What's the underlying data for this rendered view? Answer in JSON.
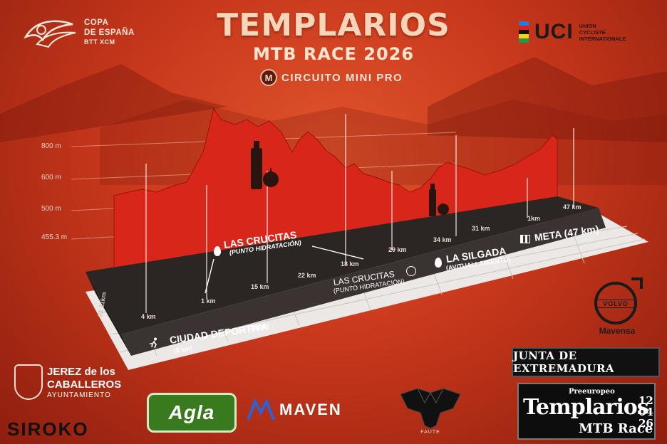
{
  "header": {
    "title": "TEMPLARIOS",
    "subtitle": "MTB RACE 2026",
    "circuit_badge": "M",
    "circuit": "CIRCUITO MINI PRO"
  },
  "copa_logo": {
    "line1": "COPA",
    "line2": "DE ESPAÑA",
    "line3": "BTT XCM"
  },
  "uci_logo": {
    "word": "UCI",
    "line1": "UNION",
    "line2": "CYCLISTE",
    "line3": "INTERNATIONALE"
  },
  "elevation_axis": {
    "ticks": [
      "800 m",
      "600 m",
      "500 m",
      "455.3 m"
    ]
  },
  "profile": {
    "km_marks": [
      "4 km",
      "1 km",
      "15 km",
      "22 km",
      "18 km",
      "29 km",
      "34 km",
      "31 km",
      "1km",
      "47 km"
    ],
    "side_label": "21 11km",
    "points": [
      {
        "label": "LAS CRUCITAS",
        "sub": "(PUNTO HIDRATACIÓN)",
        "icon": "water-drop"
      },
      {
        "label": "LAS CRUCITAS",
        "sub": "(PUNTO HIDRATACIÓN)",
        "icon": "water-drop"
      },
      {
        "label": "LA SILGADA",
        "sub": "(AVITUALLAMIENTO)",
        "icon": "water-drop"
      },
      {
        "label": "META (47 km)",
        "sub": "",
        "icon": "finish-flag"
      },
      {
        "label": "CIUDAD DEPORTIVA",
        "sub": "(0 km)",
        "icon": "runner"
      }
    ],
    "start_marker": "(1Km)"
  },
  "sponsors": {
    "volvo": "VOLVO",
    "mavensa": "Mavensa",
    "junta": "JUNTA DE EXTREMADURA",
    "templarios_logo": {
      "pre": "Preeuropeo",
      "name": "Templarios",
      "race": "MTB Race",
      "date": [
        "12",
        "04",
        "26"
      ]
    },
    "jerez": {
      "line1": "JEREZ de los",
      "line2": "CABALLEROS",
      "line3": "AYUNTAMIENTO"
    },
    "siroko": "SIROKO",
    "agla": "Agla",
    "maven": "MAVEN",
    "faute": "FAUTE"
  },
  "colors": {
    "background": "#c9381c",
    "profile_fill": "#d8261a",
    "base_dark": "#2b2624",
    "title_cream": "#f7d5b8"
  }
}
